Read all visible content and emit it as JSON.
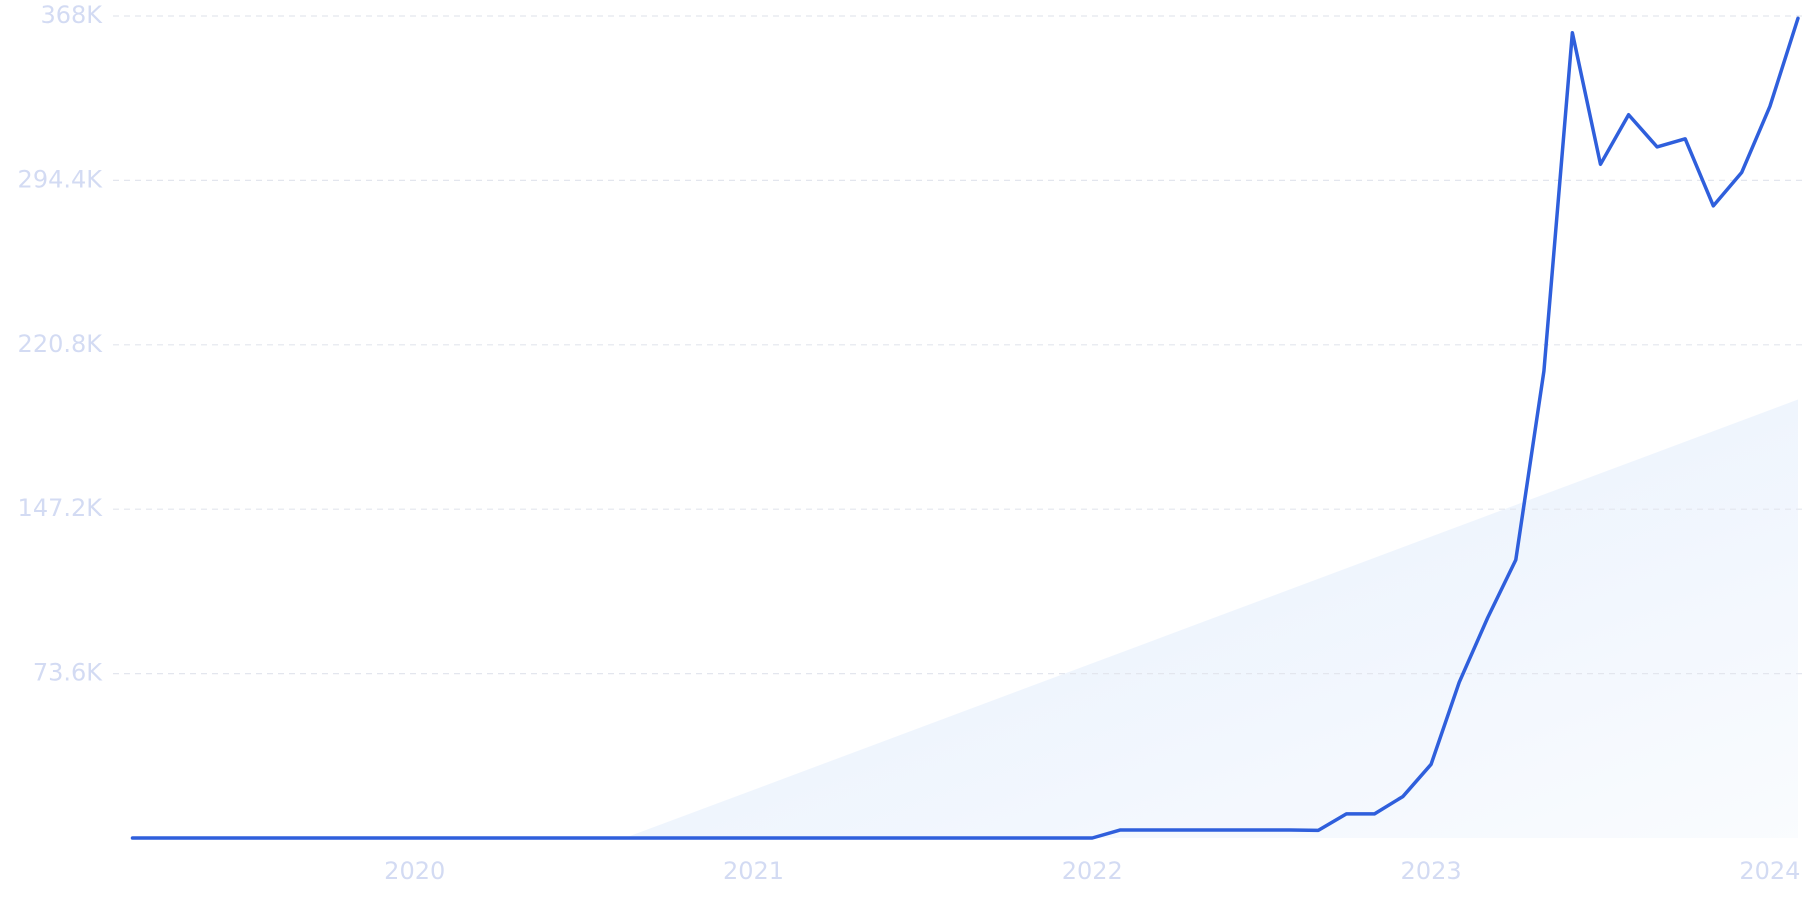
{
  "chart_data": {
    "type": "line",
    "x": [
      2019.167,
      2019.25,
      2019.333,
      2019.417,
      2019.5,
      2019.583,
      2019.667,
      2019.75,
      2019.833,
      2019.917,
      2020.0,
      2020.083,
      2020.167,
      2020.25,
      2020.333,
      2020.417,
      2020.5,
      2020.583,
      2020.667,
      2020.75,
      2020.833,
      2020.917,
      2021.0,
      2021.083,
      2021.167,
      2021.25,
      2021.333,
      2021.417,
      2021.5,
      2021.583,
      2021.667,
      2021.75,
      2021.833,
      2021.917,
      2022.0,
      2022.083,
      2022.167,
      2022.25,
      2022.333,
      2022.417,
      2022.5,
      2022.583,
      2022.667,
      2022.75,
      2022.833,
      2022.917,
      2023.0,
      2023.083,
      2023.167,
      2023.25,
      2023.333,
      2023.417,
      2023.5,
      2023.583,
      2023.667,
      2023.75,
      2023.833,
      2023.917,
      2024.0,
      2024.083
    ],
    "series": [
      {
        "color": "#2f5fdc",
        "values": [
          0,
          0,
          0,
          0,
          0,
          0,
          0,
          0,
          0,
          0,
          0,
          0,
          0,
          0,
          0,
          0,
          0,
          0,
          0,
          0,
          0,
          0,
          0,
          0,
          0,
          0,
          0,
          0,
          0,
          0,
          0,
          0,
          0,
          0,
          0,
          3600,
          3600,
          3600,
          3600,
          3600,
          3600,
          3600,
          3400,
          10800,
          10800,
          18600,
          33000,
          69700,
          98600,
          124500,
          209000,
          360500,
          301600,
          323800,
          309400,
          313000,
          283000,
          298000,
          327500,
          367000
        ]
      }
    ],
    "trend": {
      "color": "#e4eefc",
      "x": [
        2020.62,
        2024.083
      ],
      "values": [
        0,
        196300
      ]
    },
    "xlim": [
      2019.167,
      2024.083
    ],
    "xticks": [
      2020,
      2021,
      2022,
      2023,
      2024
    ],
    "ylim": [
      0,
      368000
    ],
    "yticks": [
      {
        "value": 73600,
        "label": "73.6K"
      },
      {
        "value": 147200,
        "label": "147.2K"
      },
      {
        "value": 220800,
        "label": "220.8K"
      },
      {
        "value": 294400,
        "label": "294.4K"
      },
      {
        "value": 368000,
        "label": "368K"
      }
    ],
    "grid": true
  }
}
